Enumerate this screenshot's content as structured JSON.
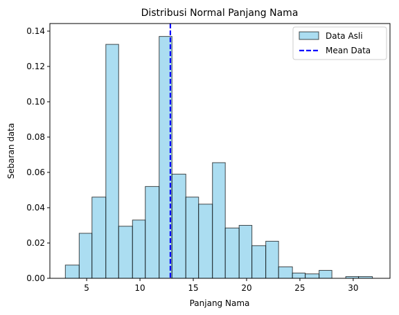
{
  "chart_data": {
    "type": "bar",
    "title": "Distribusi Normal Panjang Nama",
    "xlabel": "Panjang Nama",
    "ylabel": "Sebaran data",
    "xlim": [
      1.55,
      33.45
    ],
    "ylim": [
      0,
      0.1443
    ],
    "xticks": [
      5,
      10,
      15,
      20,
      25,
      30
    ],
    "xtick_labels": [
      "5",
      "10",
      "15",
      "20",
      "25",
      "30"
    ],
    "yticks": [
      0.0,
      0.02,
      0.04,
      0.06,
      0.08,
      0.1,
      0.12,
      0.14
    ],
    "ytick_labels": [
      "0.00",
      "0.02",
      "0.04",
      "0.06",
      "0.08",
      "0.10",
      "0.12",
      "0.14"
    ],
    "grid": false,
    "legend_position": "top-right",
    "bin_edges": [
      3.0,
      4.3,
      5.5,
      6.8,
      8.0,
      9.3,
      10.5,
      11.8,
      13.0,
      14.3,
      15.5,
      16.8,
      18.0,
      19.3,
      20.5,
      21.8,
      23.0,
      24.3,
      25.5,
      26.8,
      28.0,
      29.3,
      30.5,
      31.8
    ],
    "series": [
      {
        "name": "Data Asli",
        "kind": "histogram",
        "color": "#87ceeb",
        "edgecolor": "#000000",
        "alpha": 0.7,
        "values": [
          0.0075,
          0.0255,
          0.046,
          0.1325,
          0.0295,
          0.033,
          0.052,
          0.137,
          0.059,
          0.046,
          0.042,
          0.0655,
          0.0285,
          0.03,
          0.0185,
          0.021,
          0.0065,
          0.003,
          0.0025,
          0.0045,
          0.0,
          0.001,
          0.001
        ]
      },
      {
        "name": "Mean Data",
        "kind": "vline",
        "x": 12.85,
        "color": "#0000ff",
        "linestyle": "dashed"
      }
    ]
  }
}
